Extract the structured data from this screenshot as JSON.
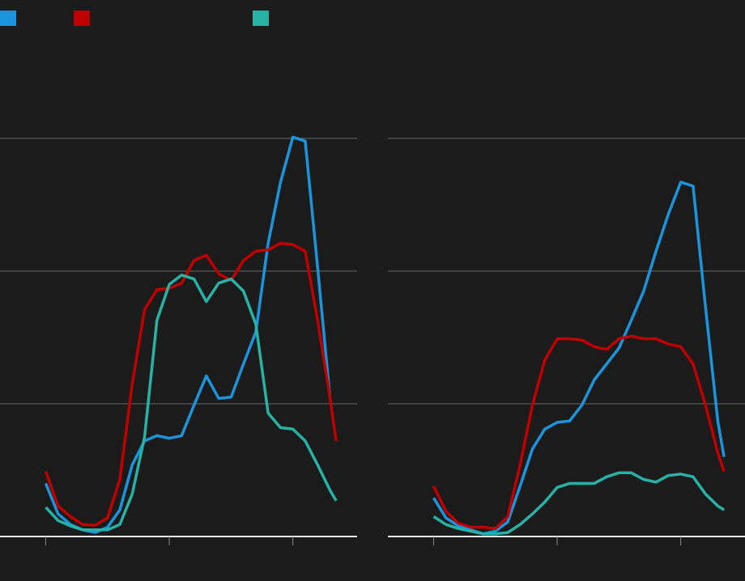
{
  "chart_data": [
    {
      "type": "line",
      "x": [
        0,
        0.1,
        0.2,
        0.3,
        0.4,
        0.5,
        0.6,
        0.7,
        0.8,
        0.9,
        1.0,
        1.1,
        1.2,
        1.3,
        1.4,
        1.5,
        1.6,
        1.7,
        1.8,
        1.9,
        2.0,
        2.1,
        2.2,
        2.3,
        2.35
      ],
      "series": [
        {
          "color": "#1a95dd",
          "values": [
            0.4,
            0.17,
            0.09,
            0.05,
            0.03,
            0.07,
            0.2,
            0.54,
            0.72,
            0.76,
            0.74,
            0.76,
            0.99,
            1.21,
            1.04,
            1.05,
            1.3,
            1.54,
            2.21,
            2.67,
            3.01,
            2.98,
            2.03,
            1.05,
            null
          ]
        },
        {
          "color": "#c00000",
          "values": [
            0.49,
            0.23,
            0.15,
            0.09,
            0.085,
            0.14,
            0.43,
            1.15,
            1.71,
            1.86,
            1.87,
            1.91,
            2.08,
            2.12,
            1.98,
            1.93,
            2.08,
            2.15,
            2.16,
            2.21,
            2.2,
            2.15,
            1.63,
            1.05,
            0.72
          ]
        },
        {
          "color": "#26b3a5",
          "values": [
            0.22,
            0.12,
            0.08,
            0.05,
            0.05,
            0.05,
            0.09,
            0.32,
            0.75,
            1.63,
            1.9,
            1.97,
            1.94,
            1.77,
            1.91,
            1.94,
            1.85,
            1.6,
            0.93,
            0.82,
            0.81,
            0.72,
            0.54,
            0.35,
            0.27
          ]
        }
      ],
      "xlim": [
        -0.37,
        2.52
      ],
      "xticks": [
        0,
        1,
        2
      ],
      "ylim": [
        0,
        4
      ],
      "yticks": [
        0,
        1,
        2,
        3
      ],
      "grid": true
    },
    {
      "type": "line",
      "x": [
        0,
        0.1,
        0.2,
        0.3,
        0.4,
        0.5,
        0.6,
        0.7,
        0.8,
        0.9,
        1.0,
        1.1,
        1.2,
        1.3,
        1.4,
        1.5,
        1.6,
        1.7,
        1.8,
        1.9,
        2.0,
        2.1,
        2.2,
        2.3,
        2.35
      ],
      "series": [
        {
          "color": "#1a95dd",
          "values": [
            0.29,
            0.14,
            0.08,
            0.05,
            0.02,
            0.04,
            0.11,
            0.38,
            0.66,
            0.81,
            0.86,
            0.87,
            0.99,
            1.18,
            1.3,
            1.42,
            1.63,
            1.85,
            2.15,
            2.43,
            2.67,
            2.64,
            1.73,
            0.87,
            0.6
          ]
        },
        {
          "color": "#c00000",
          "values": [
            0.38,
            0.19,
            0.1,
            0.07,
            0.07,
            0.06,
            0.15,
            0.54,
            0.99,
            1.33,
            1.49,
            1.49,
            1.48,
            1.43,
            1.41,
            1.49,
            1.51,
            1.49,
            1.49,
            1.45,
            1.43,
            1.3,
            0.99,
            0.63,
            0.49
          ]
        },
        {
          "color": "#26b3a5",
          "values": [
            0.15,
            0.09,
            0.06,
            0.04,
            0.02,
            0.02,
            0.03,
            0.09,
            0.17,
            0.26,
            0.37,
            0.4,
            0.4,
            0.4,
            0.45,
            0.48,
            0.48,
            0.43,
            0.41,
            0.46,
            0.47,
            0.45,
            0.32,
            0.23,
            0.2
          ]
        }
      ],
      "xlim": [
        -0.37,
        2.52
      ],
      "xticks": [
        0,
        1,
        2
      ],
      "ylim": [
        0,
        4
      ],
      "yticks": [
        0,
        1,
        2,
        3
      ],
      "grid": true
    }
  ]
}
